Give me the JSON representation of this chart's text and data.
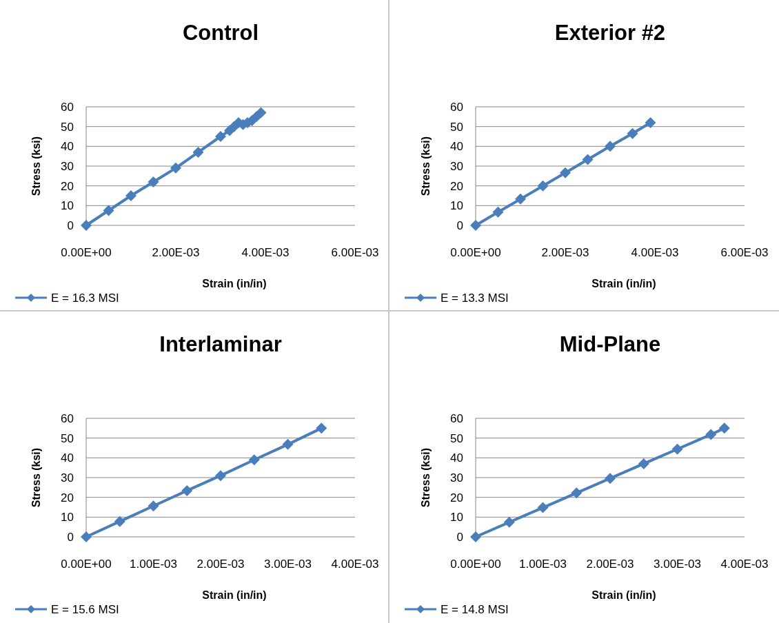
{
  "chart_data": [
    {
      "type": "line",
      "title": "Control",
      "xlabel": "Strain (in/in)",
      "ylabel": "Stress (ksi)",
      "x": [
        0,
        0.0005,
        0.001,
        0.0015,
        0.002,
        0.0025,
        0.003,
        0.0032,
        0.0033,
        0.0034,
        0.0035,
        0.0036,
        0.0037,
        0.0038,
        0.0039
      ],
      "series": [
        {
          "name": "E = 16.3 MSI",
          "color": "#4a7ebb",
          "values": [
            0,
            7.5,
            15,
            22,
            29,
            37,
            45,
            48,
            50,
            52,
            51,
            52,
            53,
            55,
            57
          ]
        }
      ],
      "xlim": [
        0,
        0.006
      ],
      "xticks": [
        {
          "value": 0,
          "label": "0.00E+00"
        },
        {
          "value": 0.002,
          "label": "2.00E-03"
        },
        {
          "value": 0.004,
          "label": "4.00E-03"
        },
        {
          "value": 0.006,
          "label": "6.00E-03"
        }
      ],
      "ylim": [
        0,
        60
      ],
      "yticks": [
        0,
        10,
        20,
        30,
        40,
        50,
        60
      ],
      "grid": "y",
      "legend": "bottom left",
      "marker": "diamond",
      "line_style": "solid"
    },
    {
      "type": "line",
      "title": "Exterior #2",
      "xlabel": "Strain (in/in)",
      "ylabel": "Stress (ksi)",
      "x": [
        0,
        0.0005,
        0.001,
        0.0015,
        0.002,
        0.0025,
        0.003,
        0.0035,
        0.0039
      ],
      "series": [
        {
          "name": "E = 13.3 MSI",
          "color": "#4a7ebb",
          "values": [
            0,
            6.7,
            13.3,
            20,
            26.6,
            33.3,
            40,
            46.5,
            52
          ]
        }
      ],
      "xlim": [
        0,
        0.006
      ],
      "xticks": [
        {
          "value": 0,
          "label": "0.00E+00"
        },
        {
          "value": 0.002,
          "label": "2.00E-03"
        },
        {
          "value": 0.004,
          "label": "4.00E-03"
        },
        {
          "value": 0.006,
          "label": "6.00E-03"
        }
      ],
      "ylim": [
        0,
        60
      ],
      "yticks": [
        0,
        10,
        20,
        30,
        40,
        50,
        60
      ],
      "grid": "y",
      "legend": "bottom left",
      "marker": "diamond",
      "line_style": "solid"
    },
    {
      "type": "line",
      "title": "Interlaminar",
      "xlabel": "Strain (in/in)",
      "ylabel": "Stress (ksi)",
      "x": [
        0,
        0.0005,
        0.001,
        0.0015,
        0.002,
        0.0025,
        0.003,
        0.0035
      ],
      "series": [
        {
          "name": "E = 15.6 MSI",
          "color": "#4a7ebb",
          "values": [
            0,
            7.8,
            15.6,
            23.4,
            31,
            39,
            46.8,
            55
          ]
        }
      ],
      "xlim": [
        0,
        0.004
      ],
      "xticks": [
        {
          "value": 0,
          "label": "0.00E+00"
        },
        {
          "value": 0.001,
          "label": "1.00E-03"
        },
        {
          "value": 0.002,
          "label": "2.00E-03"
        },
        {
          "value": 0.003,
          "label": "3.00E-03"
        },
        {
          "value": 0.004,
          "label": "4.00E-03"
        }
      ],
      "ylim": [
        0,
        60
      ],
      "yticks": [
        0,
        10,
        20,
        30,
        40,
        50,
        60
      ],
      "grid": "y",
      "legend": "bottom left",
      "marker": "diamond",
      "line_style": "solid"
    },
    {
      "type": "line",
      "title": "Mid-Plane",
      "xlabel": "Strain (in/in)",
      "ylabel": "Stress (ksi)",
      "x": [
        0,
        0.0005,
        0.001,
        0.0015,
        0.002,
        0.0025,
        0.003,
        0.0035,
        0.0037
      ],
      "series": [
        {
          "name": "E = 14.8 MSI",
          "color": "#4a7ebb",
          "values": [
            0,
            7.4,
            14.8,
            22.2,
            29.6,
            37,
            44.4,
            51.8,
            55
          ]
        }
      ],
      "xlim": [
        0,
        0.004
      ],
      "xticks": [
        {
          "value": 0,
          "label": "0.00E+00"
        },
        {
          "value": 0.001,
          "label": "1.00E-03"
        },
        {
          "value": 0.002,
          "label": "2.00E-03"
        },
        {
          "value": 0.003,
          "label": "3.00E-03"
        },
        {
          "value": 0.004,
          "label": "4.00E-03"
        }
      ],
      "ylim": [
        0,
        60
      ],
      "yticks": [
        0,
        10,
        20,
        30,
        40,
        50,
        60
      ],
      "grid": "y",
      "legend": "bottom left",
      "marker": "diamond",
      "line_style": "solid"
    }
  ]
}
